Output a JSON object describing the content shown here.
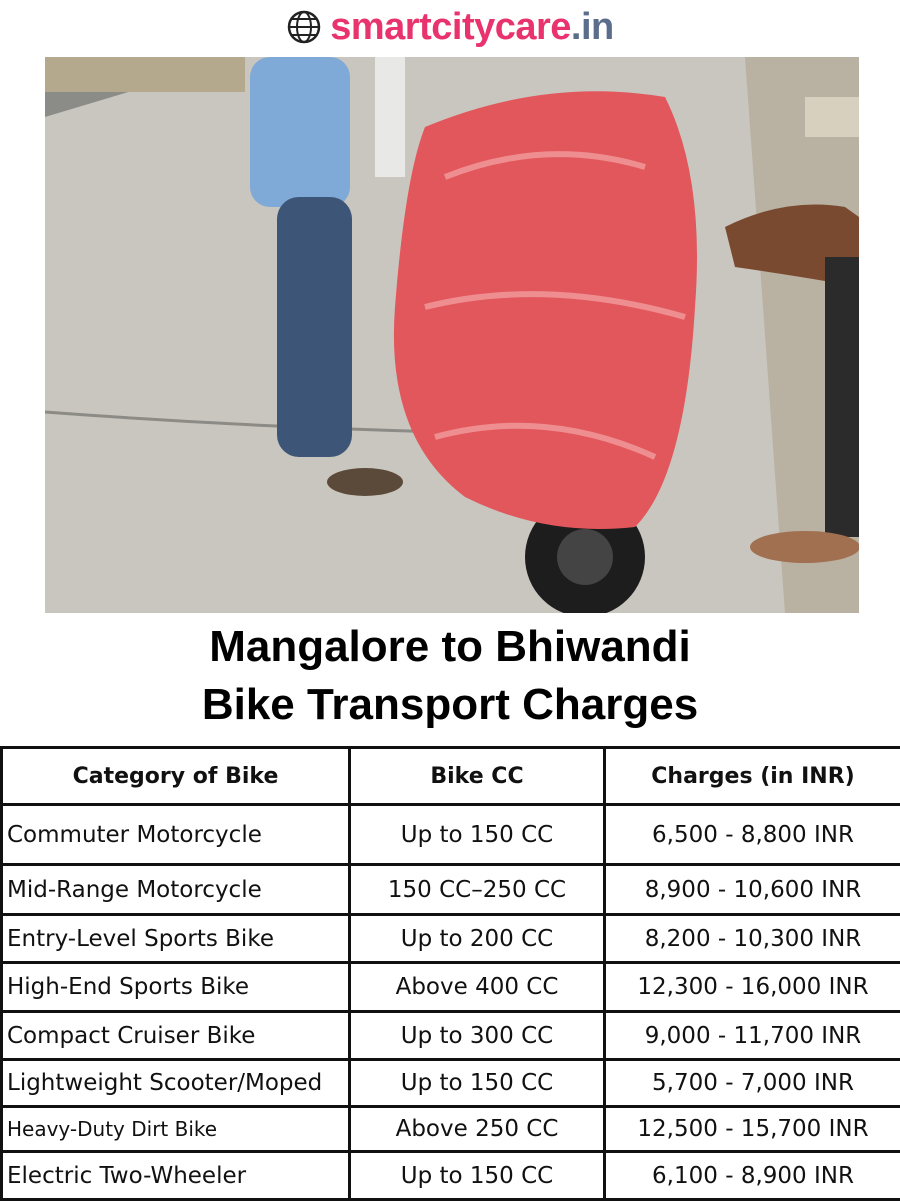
{
  "header": {
    "domain": "smartcitycare",
    "tld": ".in"
  },
  "title": [
    "Mangalore to Bhiwandi",
    "Bike Transport Charges"
  ],
  "table": {
    "columns": [
      "Category of Bike",
      "Bike CC",
      "Charges (in INR)"
    ],
    "rows": [
      [
        "Commuter Motorcycle",
        "Up to 150 CC",
        "6,500 - 8,800 INR"
      ],
      [
        "Mid-Range Motorcycle",
        "150 CC–250 CC",
        "8,900 - 10,600 INR"
      ],
      [
        "Entry-Level Sports Bike",
        "Up to 200 CC",
        "8,200 - 10,300 INR"
      ],
      [
        "High-End Sports Bike",
        "Above 400 CC",
        "12,300 - 16,000 INR"
      ],
      [
        "Compact Cruiser Bike",
        "Up to 300 CC",
        "9,000 - 11,700 INR"
      ],
      [
        "Lightweight Scooter/Moped",
        "Up to 150 CC",
        "5,700 - 7,000 INR"
      ],
      [
        "Heavy-Duty Dirt Bike",
        "Above 250 CC",
        "12,500 - 15,700 INR"
      ],
      [
        "Electric Two-Wheeler",
        "Up to 150 CC",
        "6,100 - 8,900 INR"
      ]
    ]
  }
}
